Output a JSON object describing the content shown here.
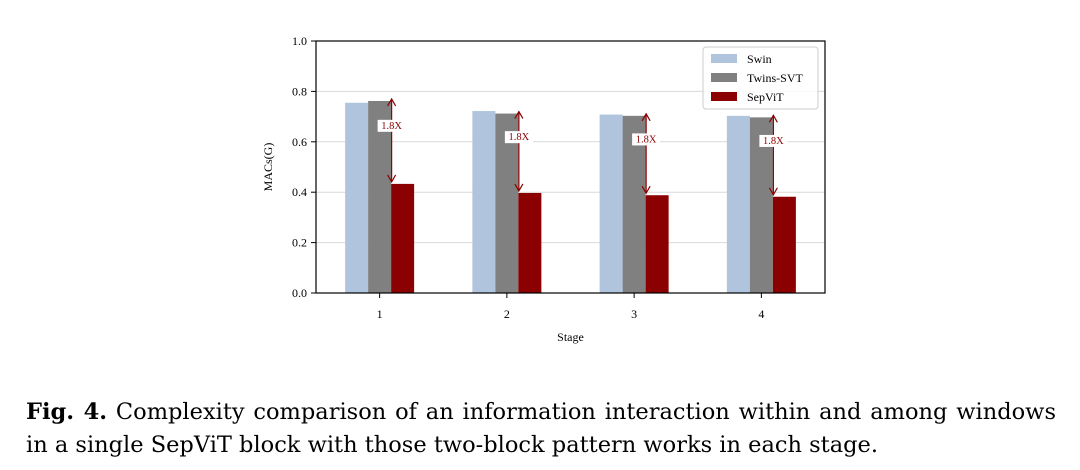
{
  "chart_data": {
    "type": "bar",
    "title": "",
    "xlabel": "Stage",
    "ylabel": "MACs(G)",
    "categories": [
      "1",
      "2",
      "3",
      "4"
    ],
    "ylim": [
      0.0,
      1.0
    ],
    "yticks": [
      "0.0",
      "0.2",
      "0.4",
      "0.6",
      "0.8",
      "1.0"
    ],
    "grid": "horizontal",
    "legend_position": "top-right",
    "series": [
      {
        "name": "Swin",
        "color": "#b0c4de",
        "values": [
          0.755,
          0.722,
          0.708,
          0.703
        ]
      },
      {
        "name": "Twins-SVT",
        "color": "#808080",
        "values": [
          0.762,
          0.712,
          0.703,
          0.697
        ]
      },
      {
        "name": "SepViT",
        "color": "#8b0000",
        "values": [
          0.433,
          0.397,
          0.388,
          0.382
        ]
      }
    ],
    "annotations": [
      {
        "category": "1",
        "label": "1.8X",
        "from": 0.433,
        "to": 0.762
      },
      {
        "category": "2",
        "label": "1.8X",
        "from": 0.397,
        "to": 0.712
      },
      {
        "category": "3",
        "label": "1.8X",
        "from": 0.388,
        "to": 0.703
      },
      {
        "category": "4",
        "label": "1.8X",
        "from": 0.382,
        "to": 0.697
      }
    ],
    "annotation_color": "#8b0000"
  },
  "caption": {
    "label": "Fig. 4.",
    "text": " Complexity comparison of an information interaction within and among windows in a single SepViT block with those two-block pattern works in each stage."
  }
}
